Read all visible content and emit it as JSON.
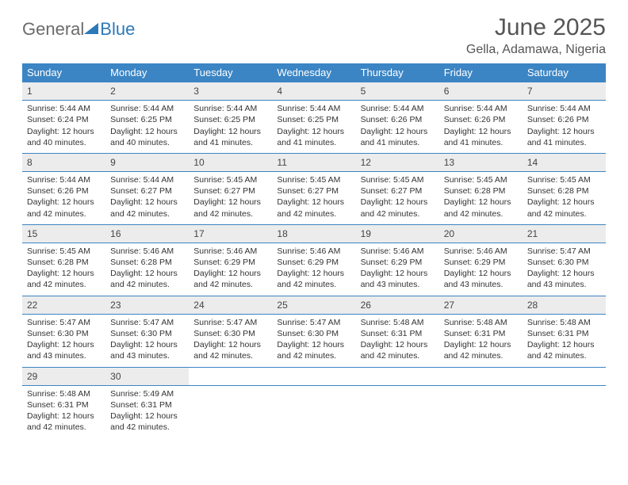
{
  "logo": {
    "part1": "General",
    "part2": "Blue"
  },
  "title": "June 2025",
  "location": "Gella, Adamawa, Nigeria",
  "colors": {
    "header_bg": "#3b85c4",
    "header_fg": "#ffffff",
    "daynum_bg": "#ececec",
    "rule": "#3b85c4",
    "text": "#333333",
    "title_text": "#555555"
  },
  "fonts": {
    "title_size_pt": 22,
    "location_size_pt": 12,
    "weekday_size_pt": 10,
    "daynum_size_pt": 9,
    "body_size_pt": 8
  },
  "weekdays": [
    "Sunday",
    "Monday",
    "Tuesday",
    "Wednesday",
    "Thursday",
    "Friday",
    "Saturday"
  ],
  "weeks": [
    [
      {
        "n": "1",
        "sr": "Sunrise: 5:44 AM",
        "ss": "Sunset: 6:24 PM",
        "dl": "Daylight: 12 hours and 40 minutes."
      },
      {
        "n": "2",
        "sr": "Sunrise: 5:44 AM",
        "ss": "Sunset: 6:25 PM",
        "dl": "Daylight: 12 hours and 40 minutes."
      },
      {
        "n": "3",
        "sr": "Sunrise: 5:44 AM",
        "ss": "Sunset: 6:25 PM",
        "dl": "Daylight: 12 hours and 41 minutes."
      },
      {
        "n": "4",
        "sr": "Sunrise: 5:44 AM",
        "ss": "Sunset: 6:25 PM",
        "dl": "Daylight: 12 hours and 41 minutes."
      },
      {
        "n": "5",
        "sr": "Sunrise: 5:44 AM",
        "ss": "Sunset: 6:26 PM",
        "dl": "Daylight: 12 hours and 41 minutes."
      },
      {
        "n": "6",
        "sr": "Sunrise: 5:44 AM",
        "ss": "Sunset: 6:26 PM",
        "dl": "Daylight: 12 hours and 41 minutes."
      },
      {
        "n": "7",
        "sr": "Sunrise: 5:44 AM",
        "ss": "Sunset: 6:26 PM",
        "dl": "Daylight: 12 hours and 41 minutes."
      }
    ],
    [
      {
        "n": "8",
        "sr": "Sunrise: 5:44 AM",
        "ss": "Sunset: 6:26 PM",
        "dl": "Daylight: 12 hours and 42 minutes."
      },
      {
        "n": "9",
        "sr": "Sunrise: 5:44 AM",
        "ss": "Sunset: 6:27 PM",
        "dl": "Daylight: 12 hours and 42 minutes."
      },
      {
        "n": "10",
        "sr": "Sunrise: 5:45 AM",
        "ss": "Sunset: 6:27 PM",
        "dl": "Daylight: 12 hours and 42 minutes."
      },
      {
        "n": "11",
        "sr": "Sunrise: 5:45 AM",
        "ss": "Sunset: 6:27 PM",
        "dl": "Daylight: 12 hours and 42 minutes."
      },
      {
        "n": "12",
        "sr": "Sunrise: 5:45 AM",
        "ss": "Sunset: 6:27 PM",
        "dl": "Daylight: 12 hours and 42 minutes."
      },
      {
        "n": "13",
        "sr": "Sunrise: 5:45 AM",
        "ss": "Sunset: 6:28 PM",
        "dl": "Daylight: 12 hours and 42 minutes."
      },
      {
        "n": "14",
        "sr": "Sunrise: 5:45 AM",
        "ss": "Sunset: 6:28 PM",
        "dl": "Daylight: 12 hours and 42 minutes."
      }
    ],
    [
      {
        "n": "15",
        "sr": "Sunrise: 5:45 AM",
        "ss": "Sunset: 6:28 PM",
        "dl": "Daylight: 12 hours and 42 minutes."
      },
      {
        "n": "16",
        "sr": "Sunrise: 5:46 AM",
        "ss": "Sunset: 6:28 PM",
        "dl": "Daylight: 12 hours and 42 minutes."
      },
      {
        "n": "17",
        "sr": "Sunrise: 5:46 AM",
        "ss": "Sunset: 6:29 PM",
        "dl": "Daylight: 12 hours and 42 minutes."
      },
      {
        "n": "18",
        "sr": "Sunrise: 5:46 AM",
        "ss": "Sunset: 6:29 PM",
        "dl": "Daylight: 12 hours and 42 minutes."
      },
      {
        "n": "19",
        "sr": "Sunrise: 5:46 AM",
        "ss": "Sunset: 6:29 PM",
        "dl": "Daylight: 12 hours and 43 minutes."
      },
      {
        "n": "20",
        "sr": "Sunrise: 5:46 AM",
        "ss": "Sunset: 6:29 PM",
        "dl": "Daylight: 12 hours and 43 minutes."
      },
      {
        "n": "21",
        "sr": "Sunrise: 5:47 AM",
        "ss": "Sunset: 6:30 PM",
        "dl": "Daylight: 12 hours and 43 minutes."
      }
    ],
    [
      {
        "n": "22",
        "sr": "Sunrise: 5:47 AM",
        "ss": "Sunset: 6:30 PM",
        "dl": "Daylight: 12 hours and 43 minutes."
      },
      {
        "n": "23",
        "sr": "Sunrise: 5:47 AM",
        "ss": "Sunset: 6:30 PM",
        "dl": "Daylight: 12 hours and 43 minutes."
      },
      {
        "n": "24",
        "sr": "Sunrise: 5:47 AM",
        "ss": "Sunset: 6:30 PM",
        "dl": "Daylight: 12 hours and 42 minutes."
      },
      {
        "n": "25",
        "sr": "Sunrise: 5:47 AM",
        "ss": "Sunset: 6:30 PM",
        "dl": "Daylight: 12 hours and 42 minutes."
      },
      {
        "n": "26",
        "sr": "Sunrise: 5:48 AM",
        "ss": "Sunset: 6:31 PM",
        "dl": "Daylight: 12 hours and 42 minutes."
      },
      {
        "n": "27",
        "sr": "Sunrise: 5:48 AM",
        "ss": "Sunset: 6:31 PM",
        "dl": "Daylight: 12 hours and 42 minutes."
      },
      {
        "n": "28",
        "sr": "Sunrise: 5:48 AM",
        "ss": "Sunset: 6:31 PM",
        "dl": "Daylight: 12 hours and 42 minutes."
      }
    ],
    [
      {
        "n": "29",
        "sr": "Sunrise: 5:48 AM",
        "ss": "Sunset: 6:31 PM",
        "dl": "Daylight: 12 hours and 42 minutes."
      },
      {
        "n": "30",
        "sr": "Sunrise: 5:49 AM",
        "ss": "Sunset: 6:31 PM",
        "dl": "Daylight: 12 hours and 42 minutes."
      },
      null,
      null,
      null,
      null,
      null
    ]
  ]
}
